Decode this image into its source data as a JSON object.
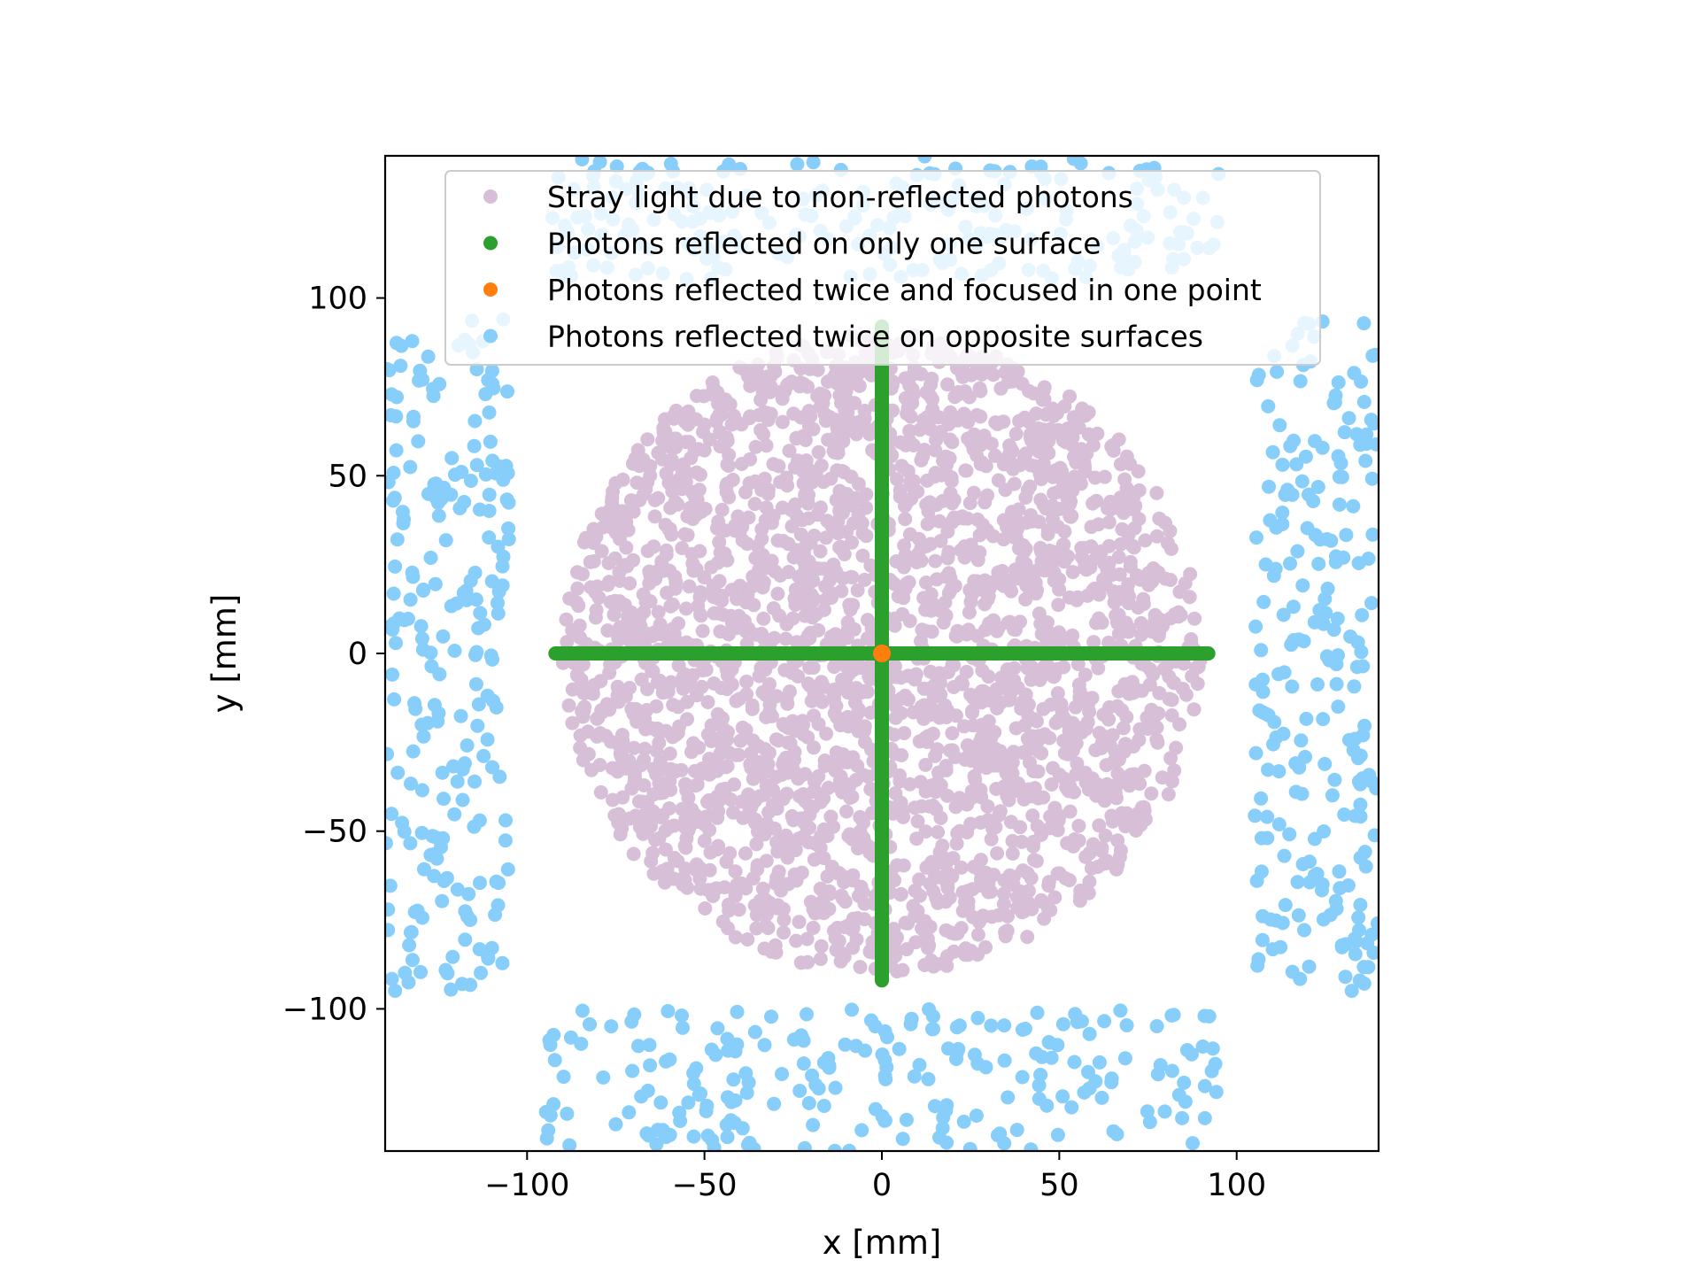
{
  "chart_data": {
    "type": "scatter",
    "xlabel": "x [mm]",
    "ylabel": "y [mm]",
    "xlim": [
      -140,
      140
    ],
    "ylim": [
      -140,
      140
    ],
    "xticks": [
      -100,
      -50,
      0,
      50,
      100
    ],
    "yticks": [
      -100,
      -50,
      0,
      50,
      100
    ],
    "xtick_labels": [
      "−100",
      "−50",
      "0",
      "50",
      "100"
    ],
    "ytick_labels": [
      "−100",
      "−50",
      "0",
      "50",
      "100"
    ],
    "grid": false,
    "legend_position": "upper-center",
    "series": [
      {
        "name": "Stray light due to non-reflected photons",
        "color": "#d8bfd8",
        "distribution": "disk",
        "center": [
          0,
          0
        ],
        "radius": 90,
        "count": 2600
      },
      {
        "name": "Photons reflected on only one surface",
        "color": "#2ca02c",
        "distribution": "cross",
        "x_extent": [
          -92,
          92
        ],
        "y_extent": [
          -92,
          92
        ],
        "count": 800
      },
      {
        "name": "Photons reflected twice and focused in one point",
        "color": "#ff7f0e",
        "points": [
          [
            0,
            0
          ]
        ]
      },
      {
        "name": "Photons reflected twice on opposite surfaces",
        "color": "#87cefa",
        "distribution": "four-bands",
        "regions": [
          {
            "x": [
              -140,
              -105
            ],
            "y": [
              -95,
              95
            ]
          },
          {
            "x": [
              105,
              140
            ],
            "y": [
              -95,
              95
            ]
          },
          {
            "x": [
              -95,
              95
            ],
            "y": [
              -140,
              -100
            ]
          },
          {
            "x": [
              -95,
              95
            ],
            "y": [
              105,
              140
            ]
          }
        ],
        "count": 900
      }
    ]
  }
}
